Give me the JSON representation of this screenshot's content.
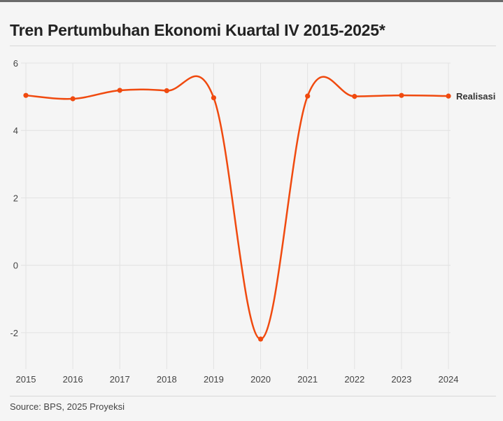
{
  "title": "Tren Pertumbuhan Ekonomi Kuartal IV 2015-2025*",
  "source": "Source: BPS, 2025 Proyeksi",
  "colors": {
    "line": "#f04a0f",
    "grid": "#e2e2e2",
    "background": "#f5f5f5"
  },
  "chart_data": {
    "type": "line",
    "title": "Tren Pertumbuhan Ekonomi Kuartal IV 2015-2025*",
    "xlabel": "",
    "ylabel": "",
    "x": [
      "2015",
      "2016",
      "2017",
      "2018",
      "2019",
      "2020",
      "2021",
      "2022",
      "2023",
      "2024"
    ],
    "series": [
      {
        "name": "Realisasi",
        "values": [
          5.04,
          4.94,
          5.19,
          5.18,
          4.97,
          -2.19,
          5.02,
          5.01,
          5.04,
          5.02
        ]
      }
    ],
    "yticks": [
      "6",
      "4",
      "2",
      "0",
      "-2"
    ],
    "ylim": [
      -3,
      6
    ],
    "grid": true,
    "legend": "end-of-line label"
  }
}
